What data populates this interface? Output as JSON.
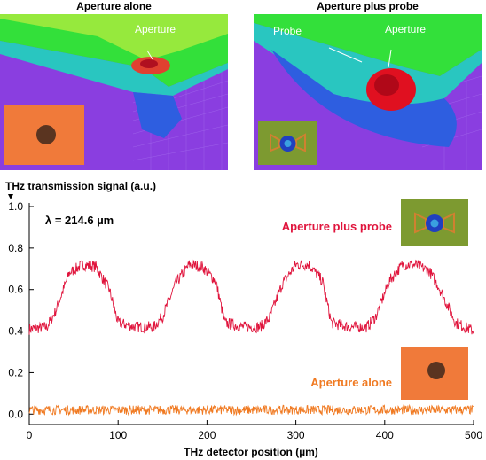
{
  "panels": {
    "left_title": "Aperture alone",
    "right_title": "Aperture plus probe",
    "left_label_aperture": "Aperture",
    "right_label_probe": "Probe",
    "right_label_aperture": "Aperture"
  },
  "colors": {
    "aperture_plus_probe": "#e0143c",
    "aperture_alone": "#f07a22",
    "sim_background": "#8a3ee0",
    "field_green": "#33e03a",
    "field_red": "#d8202a",
    "inset_orange": "#f07a3a"
  },
  "chart_data": {
    "type": "line",
    "ylabel": "THz transmission signal (a.u.)",
    "xlabel": "THz detector position (µm)",
    "annotation": "λ = 214.6 µm",
    "xlim": [
      0,
      500
    ],
    "ylim": [
      -0.05,
      1.0
    ],
    "xticks": [
      0,
      100,
      200,
      300,
      400,
      500
    ],
    "yticks": [
      0.0,
      0.2,
      0.4,
      0.6,
      0.8,
      1.0
    ],
    "ytick_labels": [
      "0.0",
      "0.2",
      "0.4",
      "0.6",
      "0.8",
      "1.0"
    ],
    "series": [
      {
        "name": "Aperture plus probe",
        "x": [
          0,
          20,
          30,
          45,
          60,
          75,
          90,
          100,
          120,
          140,
          150,
          165,
          180,
          195,
          210,
          220,
          240,
          260,
          270,
          285,
          300,
          315,
          330,
          340,
          360,
          380,
          390,
          405,
          420,
          435,
          450,
          460,
          480,
          495,
          500
        ],
        "y": [
          0.41,
          0.42,
          0.5,
          0.68,
          0.72,
          0.71,
          0.6,
          0.44,
          0.42,
          0.42,
          0.47,
          0.63,
          0.72,
          0.71,
          0.64,
          0.44,
          0.42,
          0.42,
          0.46,
          0.63,
          0.72,
          0.72,
          0.64,
          0.44,
          0.42,
          0.42,
          0.47,
          0.64,
          0.72,
          0.72,
          0.69,
          0.62,
          0.44,
          0.41,
          0.4
        ]
      },
      {
        "name": "Aperture alone",
        "x": [
          0,
          100,
          200,
          300,
          400,
          500
        ],
        "y": [
          0.02,
          0.02,
          0.02,
          0.02,
          0.02,
          0.02
        ]
      }
    ],
    "legend": [
      "Aperture plus probe",
      "Aperture alone"
    ]
  }
}
